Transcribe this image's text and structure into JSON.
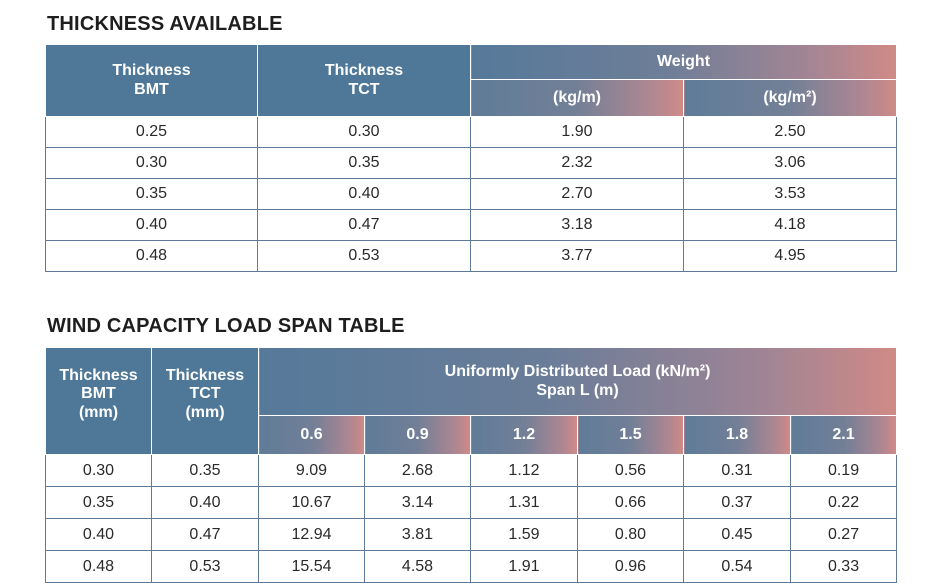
{
  "thickness_section": {
    "title": "THICKNESS AVAILABLE",
    "headers": {
      "bmt_line1": "Thickness",
      "bmt_line2": "BMT",
      "tct_line1": "Thickness",
      "tct_line2": "TCT",
      "weight": "Weight",
      "weight_kgm": "(kg/m)",
      "weight_kgm2": "(kg/m²)"
    },
    "rows": [
      [
        "0.25",
        "0.30",
        "1.90",
        "2.50"
      ],
      [
        "0.30",
        "0.35",
        "2.32",
        "3.06"
      ],
      [
        "0.35",
        "0.40",
        "2.70",
        "3.53"
      ],
      [
        "0.40",
        "0.47",
        "3.18",
        "4.18"
      ],
      [
        "0.48",
        "0.53",
        "3.77",
        "4.95"
      ]
    ]
  },
  "wind_section": {
    "title": "WIND CAPACITY LOAD SPAN TABLE",
    "headers": {
      "bmt_line1": "Thickness",
      "bmt_line2": "BMT",
      "bmt_line3": "(mm)",
      "tct_line1": "Thickness",
      "tct_line2": "TCT",
      "tct_line3": "(mm)",
      "load_line1": "Uniformly Distributed Load (kN/m²)",
      "load_line2": "Span L (m)",
      "spans": [
        "0.6",
        "0.9",
        "1.2",
        "1.5",
        "1.8",
        "2.1"
      ]
    },
    "rows": [
      [
        "0.30",
        "0.35",
        "9.09",
        "2.68",
        "1.12",
        "0.56",
        "0.31",
        "0.19"
      ],
      [
        "0.35",
        "0.40",
        "10.67",
        "3.14",
        "1.31",
        "0.66",
        "0.37",
        "0.22"
      ],
      [
        "0.40",
        "0.47",
        "12.94",
        "3.81",
        "1.59",
        "0.80",
        "0.45",
        "0.27"
      ],
      [
        "0.48",
        "0.53",
        "15.54",
        "4.58",
        "1.91",
        "0.96",
        "0.54",
        "0.33"
      ]
    ]
  },
  "colors": {
    "header_blue": "#4f7898",
    "header_gradient_end": "#d08a86",
    "border": "#5f7a96"
  }
}
